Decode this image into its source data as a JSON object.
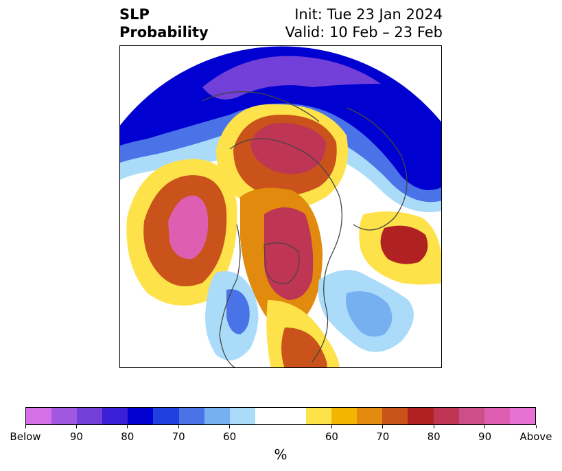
{
  "title": {
    "line1": "SLP",
    "line2": "Probability",
    "init": "Init: Tue 23 Jan 2024",
    "valid": "Valid: 10 Feb – 23 Feb"
  },
  "colorbar": {
    "colors": [
      "#d670e6",
      "#a257e0",
      "#7240d8",
      "#3a1fd6",
      "#0000d0",
      "#2040de",
      "#4b73e8",
      "#77b0f0",
      "#aadcfa",
      "#ffffff",
      "#ffffff",
      "#fde24a",
      "#f2b500",
      "#e18a0e",
      "#c9531a",
      "#b02121",
      "#bf3554",
      "#cc4f8a",
      "#de5fb2",
      "#e871d6"
    ],
    "labels": [
      "Below",
      "90",
      "80",
      "70",
      "60",
      "60",
      "70",
      "80",
      "90",
      "Above"
    ],
    "unit": "%"
  },
  "map": {
    "projection": "north polar stereographic",
    "palette": {
      "above60": "#fde24a",
      "above65": "#f2b500",
      "above70": "#e18a0e",
      "above75": "#c9531a",
      "above80": "#b02121",
      "above85": "#bf3554",
      "above90": "#cc4f8a",
      "above95": "#de5fb2",
      "below60": "#aadcfa",
      "below65": "#77b0f0",
      "below70": "#4b73e8",
      "below75": "#2040de",
      "below80": "#0000d0",
      "below85": "#3a1fd6",
      "below90": "#7240d8"
    }
  }
}
